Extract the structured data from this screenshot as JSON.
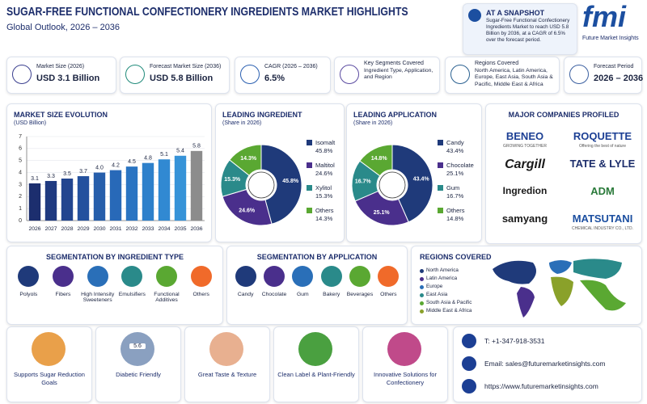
{
  "header": {
    "title": "SUGAR-FREE FUNCTIONAL CONFECTIONERY INGREDIENTS MARKET HIGHLIGHTS",
    "subtitle": "Global Outlook, 2026 – 2036"
  },
  "snapshot": {
    "title": "AT A SNAPSHOT",
    "text": "Sugar-Free Functional Confectionery Ingredients Market to reach USD 5.8 Billion by 2036, at a CAGR of 6.5% over the forecast period."
  },
  "logo": {
    "mark": "fmi",
    "name": "Future Market Insights"
  },
  "kpis": [
    {
      "label": "Market Size (2026)",
      "value": "USD 3.1 Billion"
    },
    {
      "label": "Forecast Market Size (2036)",
      "value": "USD 5.8 Billion"
    },
    {
      "label": "CAGR (2026 – 2036)",
      "value": "6.5%"
    },
    {
      "label": "Key Segments Covered",
      "value": "Ingredient Type, Application, and Region"
    },
    {
      "label": "Regions Covered",
      "value": "North America, Latin America, Europe, East Asia, South Asia & Pacific, Middle East & Africa"
    },
    {
      "label": "Forecast Period",
      "value": "2026 – 2036"
    }
  ],
  "chart_data": [
    {
      "type": "bar",
      "title": "MARKET SIZE EVOLUTION",
      "subtitle": "(USD Billion)",
      "categories": [
        "2026",
        "2027",
        "2028",
        "2029",
        "2030",
        "2031",
        "2032",
        "2033",
        "2034",
        "2035",
        "2036"
      ],
      "values": [
        3.1,
        3.3,
        3.5,
        3.7,
        4.0,
        4.2,
        4.5,
        4.8,
        5.1,
        5.4,
        5.8
      ],
      "value_labels": [
        "3.1",
        "3.3",
        "3.5",
        "3.7",
        "4.0",
        "4.2",
        "4.5",
        "4.8",
        "5.1",
        "5.4",
        "5.8"
      ],
      "colors": [
        "#1c2e6e",
        "#1f3a80",
        "#22458f",
        "#24519e",
        "#265eab",
        "#2869b8",
        "#2a74c2",
        "#2d80cb",
        "#3189d2",
        "#3693d8",
        "#8c8c8c"
      ],
      "ylim": [
        0,
        7
      ],
      "yticks": [
        0,
        1,
        2,
        3,
        4,
        5,
        6,
        7
      ],
      "grid": true
    },
    {
      "type": "pie",
      "title": "LEADING INGREDIENT",
      "subtitle": "(Share in 2026)",
      "categories": [
        "Isomalt",
        "Maltitol",
        "Xylitol",
        "Others"
      ],
      "values": [
        45.8,
        24.6,
        15.3,
        14.3
      ],
      "value_labels": [
        "45.8%",
        "24.6%",
        "15.3%",
        "14.3%"
      ],
      "colors": [
        "#1f3a7a",
        "#4a2f8c",
        "#2a8a8a",
        "#5aa832"
      ]
    },
    {
      "type": "pie",
      "title": "LEADING APPLICATION",
      "subtitle": "(Share in 2026)",
      "categories": [
        "Candy",
        "Chocolate",
        "Gum",
        "Others"
      ],
      "values": [
        43.4,
        25.1,
        16.7,
        14.8
      ],
      "value_labels": [
        "43.4%",
        "25.1%",
        "16.7%",
        "14.8%"
      ],
      "colors": [
        "#1f3a7a",
        "#4a2f8c",
        "#2a8a8a",
        "#5aa832"
      ]
    }
  ],
  "segments": {
    "ingredient": {
      "title": "SEGMENTATION BY INGREDIENT TYPE",
      "items": [
        "Polyols",
        "Fibers",
        "High Intensity Sweeteners",
        "Emulsifiers",
        "Functional Additives",
        "Others"
      ]
    },
    "application": {
      "title": "SEGMENTATION BY APPLICATION",
      "items": [
        "Candy",
        "Chocolate",
        "Gum",
        "Bakery",
        "Beverages",
        "Others"
      ]
    }
  },
  "regions": {
    "title": "REGIONS COVERED",
    "items": [
      {
        "name": "North America",
        "color": "#1f3a7a"
      },
      {
        "name": "Latin America",
        "color": "#4a2f8c"
      },
      {
        "name": "Europe",
        "color": "#2a6fb8"
      },
      {
        "name": "East Asia",
        "color": "#2a8a8a"
      },
      {
        "name": "South Asia & Pacific",
        "color": "#5aa832"
      },
      {
        "name": "Middle East & Africa",
        "color": "#8aa12a"
      }
    ]
  },
  "companies": {
    "title": "MAJOR COMPANIES PROFILED",
    "items": [
      {
        "name": "BENEO",
        "tagline": "GROWING TOGETHER"
      },
      {
        "name": "ROQUETTE",
        "tagline": "Offering the best of nature"
      },
      {
        "name": "Cargill"
      },
      {
        "name": "TATE & LYLE"
      },
      {
        "name": "Ingredion"
      },
      {
        "name": "ADM"
      },
      {
        "name": "samyang"
      },
      {
        "name": "MATSUTANI",
        "tagline": "CHEMICAL INDUSTRY CO., LTD."
      }
    ]
  },
  "benefits": [
    {
      "label": "Supports Sugar Reduction Goals"
    },
    {
      "label": "Diabetic Friendly",
      "badge": "5.6"
    },
    {
      "label": "Great Taste & Texture"
    },
    {
      "label": "Clean Label & Plant-Friendly"
    },
    {
      "label": "Innovative Solutions for Confectionery"
    }
  ],
  "contact": {
    "phone": "T: +1-347-918-3531",
    "email": "Email: sales@futuremarketinsights.com",
    "web": "https://www.futuremarketinsights.com"
  }
}
